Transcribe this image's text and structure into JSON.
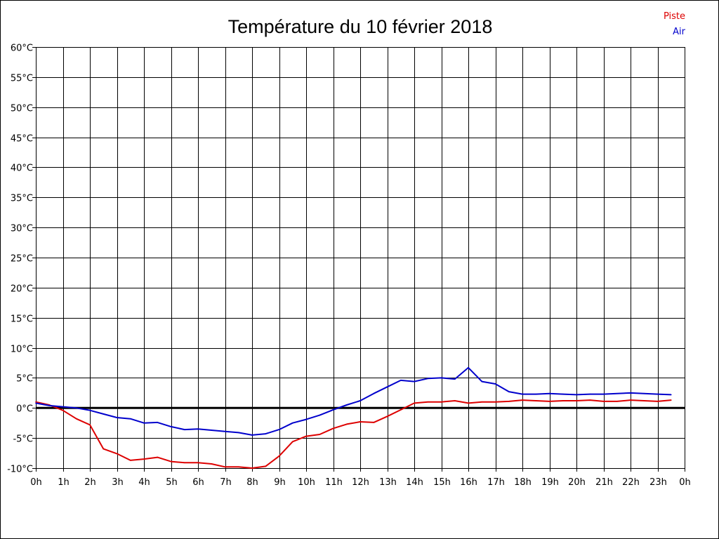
{
  "chart_data": {
    "type": "line",
    "title": "Température du 10 février 2018",
    "x_tick_labels": [
      "0h",
      "1h",
      "2h",
      "3h",
      "4h",
      "5h",
      "6h",
      "7h",
      "8h",
      "9h",
      "10h",
      "11h",
      "12h",
      "13h",
      "14h",
      "15h",
      "16h",
      "17h",
      "18h",
      "19h",
      "20h",
      "21h",
      "22h",
      "23h",
      "0h"
    ],
    "y_tick_labels": [
      "60°C",
      "55°C",
      "50°C",
      "45°C",
      "40°C",
      "35°C",
      "30°C",
      "25°C",
      "20°C",
      "15°C",
      "10°C",
      "5°C",
      "0°C",
      "-5°C",
      "-10°C"
    ],
    "ylim": [
      -10,
      60
    ],
    "xlim": [
      0,
      24
    ],
    "grid": true,
    "legend_position": "top-right",
    "series": [
      {
        "name": "Piste",
        "color": "#dd0000",
        "x": [
          0,
          0.5,
          1,
          1.5,
          2,
          2.5,
          3,
          3.5,
          4,
          4.5,
          5,
          5.5,
          6,
          6.5,
          7,
          7.5,
          8,
          8.5,
          9,
          9.5,
          10,
          10.5,
          11,
          11.5,
          12,
          12.5,
          13,
          13.5,
          14,
          14.5,
          15,
          15.5,
          16,
          16.5,
          17,
          17.5,
          18,
          18.5,
          19,
          19.5,
          20,
          20.5,
          21,
          21.5,
          22,
          22.5,
          23,
          23.5
        ],
        "values": [
          1.0,
          0.5,
          -0.4,
          -1.8,
          -2.8,
          -6.8,
          -7.6,
          -8.7,
          -8.5,
          -8.2,
          -8.9,
          -9.1,
          -9.1,
          -9.3,
          -9.8,
          -9.8,
          -10.0,
          -9.7,
          -8.0,
          -5.6,
          -4.7,
          -4.4,
          -3.4,
          -2.7,
          -2.3,
          -2.4,
          -1.4,
          -0.3,
          0.8,
          1.0,
          1.0,
          1.2,
          0.8,
          1.0,
          1.0,
          1.1,
          1.3,
          1.2,
          1.1,
          1.2,
          1.2,
          1.3,
          1.1,
          1.1,
          1.3,
          1.2,
          1.1,
          1.3
        ]
      },
      {
        "name": "Air",
        "color": "#0000cc",
        "x": [
          0,
          0.5,
          1,
          1.5,
          2,
          2.5,
          3,
          3.5,
          4,
          4.5,
          5,
          5.5,
          6,
          6.5,
          7,
          7.5,
          8,
          8.5,
          9,
          9.5,
          10,
          10.5,
          11,
          11.5,
          12,
          12.5,
          13,
          13.5,
          14,
          14.5,
          15,
          15.5,
          16,
          16.5,
          17,
          17.5,
          18,
          18.5,
          19,
          19.5,
          20,
          20.5,
          21,
          21.5,
          22,
          22.5,
          23,
          23.5
        ],
        "values": [
          0.8,
          0.4,
          0.2,
          0.0,
          -0.4,
          -1.0,
          -1.6,
          -1.8,
          -2.5,
          -2.4,
          -3.1,
          -3.6,
          -3.5,
          -3.7,
          -3.9,
          -4.1,
          -4.5,
          -4.3,
          -3.6,
          -2.5,
          -1.9,
          -1.2,
          -0.3,
          0.5,
          1.2,
          2.4,
          3.5,
          4.6,
          4.4,
          4.9,
          5.0,
          4.8,
          6.7,
          4.4,
          4.0,
          2.7,
          2.3,
          2.3,
          2.4,
          2.3,
          2.2,
          2.3,
          2.3,
          2.4,
          2.5,
          2.4,
          2.3,
          2.2
        ]
      }
    ]
  }
}
